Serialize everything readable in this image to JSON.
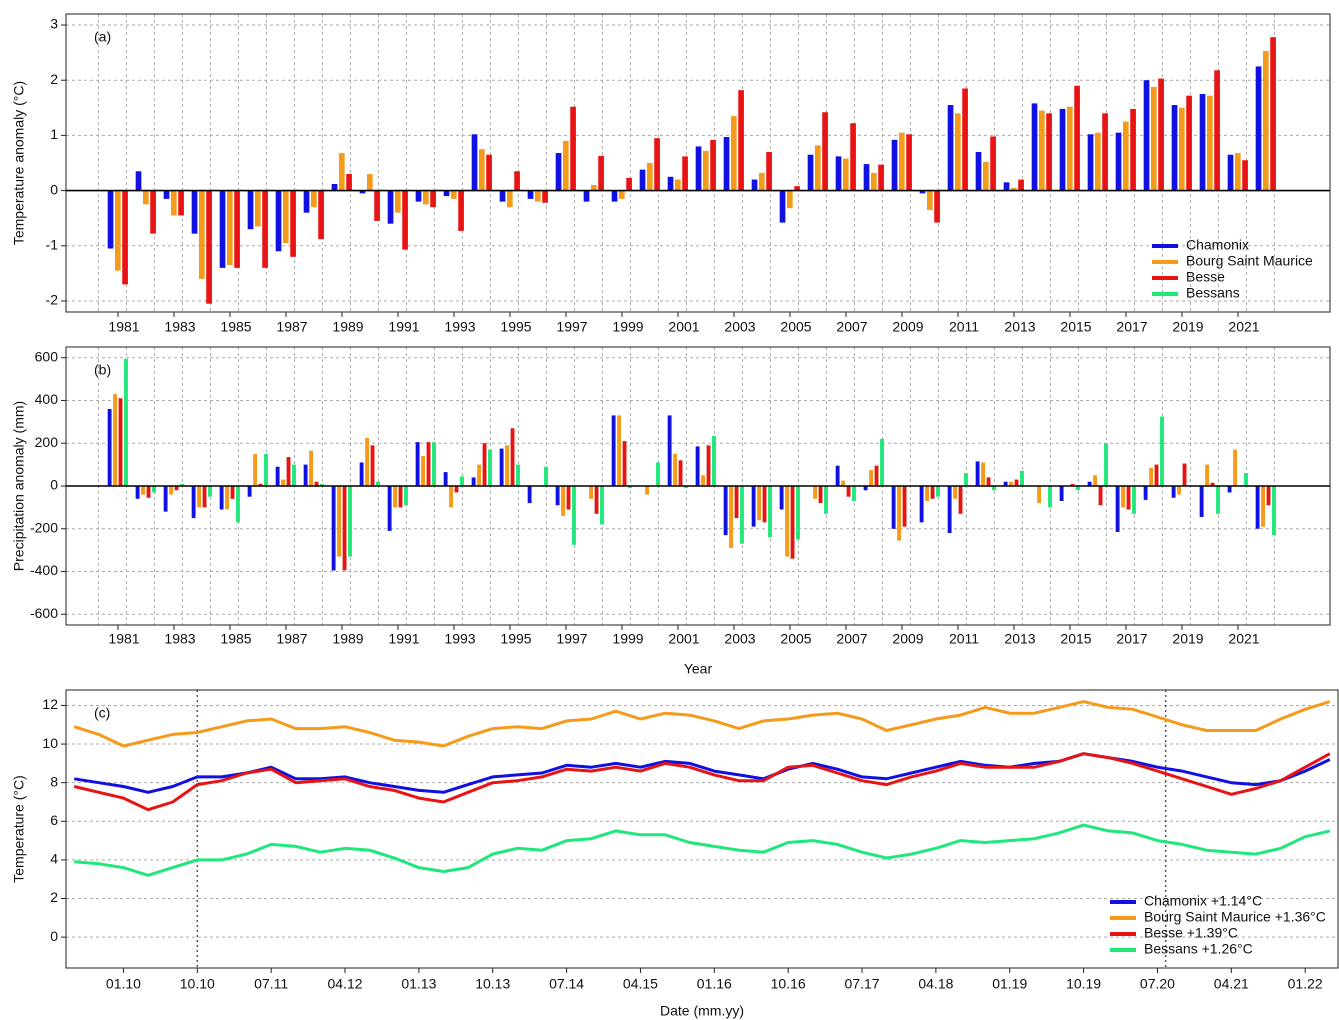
{
  "chart_data": [
    {
      "type": "bar",
      "panel_label": "(a)",
      "y_label": "Temperature anomaly (°C)",
      "categories": [
        "1981",
        null,
        "1983",
        null,
        "1985",
        null,
        "1987",
        null,
        "1989",
        null,
        "1991",
        null,
        "1993",
        null,
        "1995",
        null,
        "1997",
        null,
        "1999",
        null,
        "2001",
        null,
        "2003",
        null,
        "2005",
        null,
        "2007",
        null,
        "2009",
        null,
        "2011",
        null,
        "2013",
        null,
        "2015",
        null,
        "2017",
        null,
        "2019",
        null,
        "2021",
        null
      ],
      "ylim": [
        -2.2,
        3.2
      ],
      "yticks": [
        -2,
        -1,
        0,
        1,
        2,
        3
      ],
      "grid": true,
      "legend": "lower right",
      "series": [
        {
          "name": "Chamonix",
          "color": "#1010e0",
          "values": [
            -1.05,
            0.35,
            -0.15,
            -0.78,
            -1.4,
            -0.7,
            -1.1,
            -0.4,
            0.12,
            -0.05,
            -0.6,
            -0.2,
            -0.1,
            1.02,
            -0.2,
            -0.15,
            0.68,
            -0.2,
            -0.2,
            0.38,
            0.25,
            0.8,
            0.97,
            0.2,
            -0.58,
            0.65,
            0.62,
            0.48,
            0.92,
            -0.05,
            1.55,
            0.7,
            0.15,
            1.58,
            1.48,
            1.02,
            1.05,
            2.0,
            1.55,
            1.75,
            0.65,
            2.25
          ]
        },
        {
          "name": "Bourg Saint Maurice",
          "color": "#f59a1a",
          "values": [
            -1.45,
            -0.25,
            -0.45,
            -1.6,
            -1.35,
            -0.65,
            -0.95,
            -0.3,
            0.68,
            0.3,
            -0.4,
            -0.25,
            -0.15,
            0.75,
            -0.3,
            -0.2,
            0.9,
            0.1,
            -0.15,
            0.5,
            0.2,
            0.72,
            1.35,
            0.32,
            -0.32,
            0.82,
            0.58,
            0.32,
            1.05,
            -0.35,
            1.4,
            0.52,
            0.05,
            1.45,
            1.52,
            1.05,
            1.25,
            1.88,
            1.5,
            1.72,
            0.68,
            2.53
          ]
        },
        {
          "name": "Besse",
          "color": "#e81414",
          "values": [
            -1.7,
            -0.78,
            -0.45,
            -2.05,
            -1.4,
            -1.4,
            -1.2,
            -0.88,
            0.3,
            -0.55,
            -1.07,
            -0.3,
            -0.73,
            0.65,
            0.35,
            -0.22,
            1.52,
            0.63,
            0.23,
            0.95,
            0.62,
            0.92,
            1.82,
            0.7,
            0.08,
            1.42,
            1.22,
            0.47,
            1.02,
            -0.58,
            1.85,
            0.98,
            0.2,
            1.4,
            1.9,
            1.4,
            1.48,
            2.03,
            1.72,
            2.18,
            0.55,
            2.78
          ]
        },
        {
          "name": "Bessans",
          "color": "#1ee87a",
          "values": [
            null,
            null,
            null,
            null,
            null,
            null,
            null,
            null,
            null,
            null,
            null,
            null,
            null,
            null,
            null,
            null,
            null,
            null,
            null,
            null,
            null,
            null,
            null,
            null,
            null,
            null,
            null,
            null,
            null,
            null,
            null,
            null,
            null,
            null,
            null,
            null,
            null,
            null,
            null,
            null,
            null,
            null
          ]
        }
      ]
    },
    {
      "type": "bar",
      "panel_label": "(b)",
      "y_label": "Precipitation anomaly (mm)",
      "x_label": "Year",
      "categories": [
        "1981",
        null,
        "1983",
        null,
        "1985",
        null,
        "1987",
        null,
        "1989",
        null,
        "1991",
        null,
        "1993",
        null,
        "1995",
        null,
        "1997",
        null,
        "1999",
        null,
        "2001",
        null,
        "2003",
        null,
        "2005",
        null,
        "2007",
        null,
        "2009",
        null,
        "2011",
        null,
        "2013",
        null,
        "2015",
        null,
        "2017",
        null,
        "2019",
        null,
        "2021",
        null
      ],
      "ylim": [
        -650,
        650
      ],
      "yticks": [
        -600,
        -400,
        -200,
        0,
        200,
        400,
        600
      ],
      "grid": true,
      "series": [
        {
          "color": "#1010e0",
          "values": [
            360,
            -60,
            -120,
            -150,
            -110,
            -50,
            90,
            100,
            -395,
            110,
            -210,
            205,
            65,
            40,
            175,
            -80,
            -90,
            0,
            330,
            0,
            330,
            185,
            -230,
            -190,
            -110,
            0,
            95,
            -20,
            -200,
            -170,
            -220,
            115,
            20,
            0,
            -70,
            20,
            -215,
            -65,
            -55,
            -145,
            -30,
            -200
          ]
        },
        {
          "color": "#f59a1a",
          "values": [
            430,
            -40,
            -40,
            -100,
            -110,
            150,
            30,
            165,
            -330,
            225,
            -100,
            140,
            -100,
            100,
            190,
            0,
            -140,
            -60,
            330,
            -40,
            150,
            50,
            -290,
            -160,
            -330,
            -60,
            25,
            75,
            -255,
            -70,
            -60,
            110,
            20,
            -80,
            0,
            50,
            -100,
            85,
            -40,
            100,
            170,
            -190
          ]
        },
        {
          "color": "#e81414",
          "values": [
            410,
            -55,
            -20,
            -100,
            -60,
            10,
            135,
            20,
            -395,
            190,
            -100,
            205,
            -30,
            200,
            270,
            0,
            -110,
            -130,
            210,
            0,
            120,
            190,
            -150,
            -170,
            -340,
            -80,
            -50,
            95,
            -190,
            -60,
            -130,
            40,
            30,
            0,
            10,
            -90,
            -110,
            100,
            105,
            15,
            0,
            -90
          ]
        },
        {
          "color": "#1ee87a",
          "values": [
            595,
            -30,
            10,
            -50,
            -170,
            150,
            100,
            10,
            -330,
            20,
            -90,
            205,
            45,
            170,
            100,
            90,
            -275,
            -180,
            -10,
            110,
            -10,
            235,
            -270,
            -240,
            -250,
            -130,
            -70,
            220,
            0,
            -50,
            60,
            -20,
            70,
            -100,
            -20,
            200,
            -130,
            325,
            0,
            -130,
            60,
            -230
          ]
        }
      ]
    },
    {
      "type": "line",
      "panel_label": "(c)",
      "y_label": "Temperature (°C)",
      "x_label": "Date (mm.yy)",
      "x": [
        "07.09",
        "10.09",
        "01.10",
        "04.10",
        "07.10",
        "10.10",
        "01.11",
        "04.11",
        "07.11",
        "10.11",
        "01.12",
        "04.12",
        "07.12",
        "10.12",
        "01.13",
        "04.13",
        "07.13",
        "10.13",
        "01.14",
        "04.14",
        "07.14",
        "10.14",
        "01.15",
        "04.15",
        "07.15",
        "10.15",
        "01.16",
        "04.16",
        "07.16",
        "10.16",
        "01.17",
        "04.17",
        "07.17",
        "10.17",
        "01.18",
        "04.18",
        "07.18",
        "10.18",
        "01.19",
        "04.19",
        "07.19",
        "10.19",
        "01.20",
        "04.20",
        "07.20",
        "10.20",
        "01.21",
        "04.21",
        "07.21",
        "10.21",
        "01.22",
        "04.22"
      ],
      "xlim": [
        "06.09",
        "05.22"
      ],
      "xticks": [
        "01.10",
        "10.10",
        "07.11",
        "04.12",
        "01.13",
        "10.13",
        "07.14",
        "04.15",
        "01.16",
        "10.16",
        "07.17",
        "04.18",
        "01.19",
        "10.19",
        "07.20",
        "04.21",
        "01.22"
      ],
      "vlines": [
        "10.10",
        "08.20"
      ],
      "ylim": [
        -1.6,
        12.8
      ],
      "yticks": [
        0,
        2,
        4,
        6,
        8,
        10,
        12
      ],
      "grid": true,
      "legend": "lower right",
      "series": [
        {
          "name": "Chamonix +1.14°C",
          "color": "#1010e0",
          "values": [
            8.2,
            8.0,
            7.8,
            7.5,
            7.8,
            8.3,
            8.3,
            8.5,
            8.8,
            8.2,
            8.2,
            8.3,
            8.0,
            7.8,
            7.6,
            7.5,
            7.9,
            8.3,
            8.4,
            8.5,
            8.9,
            8.8,
            9.0,
            8.8,
            9.1,
            9.0,
            8.6,
            8.4,
            8.2,
            8.7,
            9.0,
            8.7,
            8.3,
            8.2,
            8.5,
            8.8,
            9.1,
            8.9,
            8.8,
            9.0,
            9.1,
            9.5,
            9.3,
            9.1,
            8.8,
            8.6,
            8.3,
            8.0,
            7.9,
            8.1,
            8.6,
            9.2
          ]
        },
        {
          "name": "Bourg Saint Maurice +1.36°C",
          "color": "#f59a1a",
          "values": [
            10.9,
            10.5,
            9.9,
            10.2,
            10.5,
            10.6,
            10.9,
            11.2,
            11.3,
            10.8,
            10.8,
            10.9,
            10.6,
            10.2,
            10.1,
            9.9,
            10.4,
            10.8,
            10.9,
            10.8,
            11.2,
            11.3,
            11.7,
            11.3,
            11.6,
            11.5,
            11.2,
            10.8,
            11.2,
            11.3,
            11.5,
            11.6,
            11.3,
            10.7,
            11.0,
            11.3,
            11.5,
            11.9,
            11.6,
            11.6,
            11.9,
            12.2,
            11.9,
            11.8,
            11.4,
            11.0,
            10.7,
            10.7,
            10.7,
            11.3,
            11.8,
            12.2
          ]
        },
        {
          "name": "Besse +1.39°C",
          "color": "#e81414",
          "values": [
            7.8,
            7.5,
            7.2,
            6.6,
            7.0,
            7.9,
            8.1,
            8.5,
            8.7,
            8.0,
            8.1,
            8.2,
            7.8,
            7.6,
            7.2,
            7.0,
            7.5,
            8.0,
            8.1,
            8.3,
            8.7,
            8.6,
            8.8,
            8.6,
            9.0,
            8.8,
            8.4,
            8.1,
            8.1,
            8.8,
            8.9,
            8.5,
            8.1,
            7.9,
            8.3,
            8.6,
            9.0,
            8.8,
            8.8,
            8.8,
            9.1,
            9.5,
            9.3,
            9.0,
            8.6,
            8.2,
            7.8,
            7.4,
            7.7,
            8.1,
            8.8,
            9.5
          ]
        },
        {
          "name": "Bessans +1.26°C",
          "color": "#1ee87a",
          "values": [
            3.9,
            3.8,
            3.6,
            3.2,
            3.6,
            4.0,
            4.0,
            4.3,
            4.8,
            4.7,
            4.4,
            4.6,
            4.5,
            4.1,
            3.6,
            3.4,
            3.6,
            4.3,
            4.6,
            4.5,
            5.0,
            5.1,
            5.5,
            5.3,
            5.3,
            4.9,
            4.7,
            4.5,
            4.4,
            4.9,
            5.0,
            4.8,
            4.4,
            4.1,
            4.3,
            4.6,
            5.0,
            4.9,
            5.0,
            5.1,
            5.4,
            5.8,
            5.5,
            5.4,
            5.0,
            4.8,
            4.5,
            4.4,
            4.3,
            4.6,
            5.2,
            5.5
          ]
        }
      ]
    }
  ]
}
